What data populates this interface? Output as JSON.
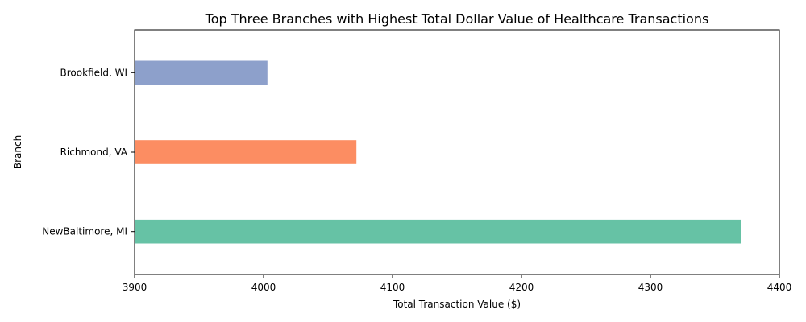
{
  "chart_data": {
    "type": "bar",
    "orientation": "horizontal",
    "title": "Top Three Branches with Highest Total Dollar Value of Healthcare Transactions",
    "xlabel": "Total Transaction Value ($)",
    "ylabel": "Branch",
    "xlim": [
      3900,
      4400
    ],
    "xticks": [
      3900,
      4000,
      4100,
      4200,
      4300,
      4400
    ],
    "categories": [
      "NewBaltimore, MI",
      "Richmond, VA",
      "Brookfield, WI"
    ],
    "values": [
      4370,
      4072,
      4003
    ],
    "colors": [
      "#66c2a5",
      "#fc8d62",
      "#8da0cb"
    ],
    "grid": false,
    "legend": "none"
  }
}
